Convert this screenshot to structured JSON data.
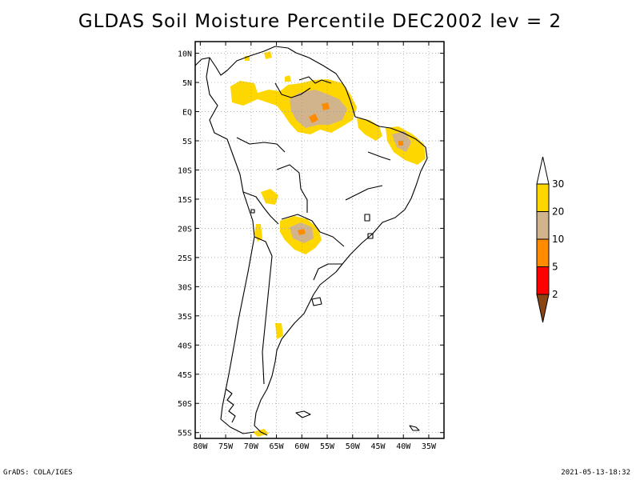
{
  "title": "GLDAS Soil Moisture Percentile DEC2002 lev = 2",
  "lat_labels": [
    "10N",
    "5N",
    "EQ",
    "5S",
    "10S",
    "15S",
    "20S",
    "25S",
    "30S",
    "35S",
    "40S",
    "45S",
    "50S",
    "55S"
  ],
  "lon_labels": [
    "80W",
    "75W",
    "70W",
    "65W",
    "60W",
    "55W",
    "50W",
    "45W",
    "40W",
    "35W"
  ],
  "colorbar": {
    "labels": [
      "30",
      "20",
      "10",
      "5",
      "2"
    ],
    "colors": {
      "above_30": "#ffffff",
      "20_30": "#ffd700",
      "10_20": "#d2b48c",
      "5_10": "#ff8c00",
      "2_5": "#ff0000",
      "below_2": "#8b4513"
    }
  },
  "footer_left": "GrADS: COLA/IGES",
  "footer_right": "2021-05-13-18:32"
}
